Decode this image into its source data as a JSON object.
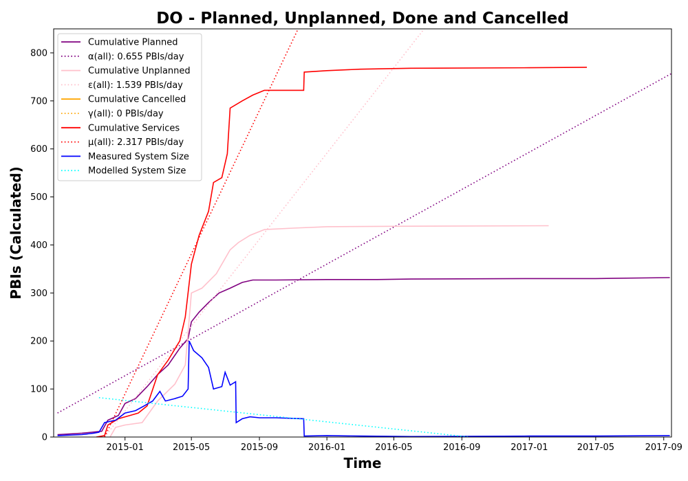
{
  "chart_data": {
    "type": "line",
    "title": "DO - Planned, Unplanned, Done  and Cancelled",
    "xlabel": "Time",
    "ylabel": "PBIs (Calculated)",
    "x_ticks": [
      "2015-01",
      "2015-05",
      "2015-09",
      "2016-01",
      "2016-05",
      "2016-09",
      "2017-01",
      "2017-05",
      "2017-09"
    ],
    "y_ticks": [
      "0",
      "100",
      "200",
      "300",
      "400",
      "500",
      "600",
      "700",
      "800"
    ],
    "xlim": [
      "2014-08-25",
      "2017-09-15"
    ],
    "ylim": [
      0,
      850
    ],
    "grid": false,
    "legend_position": "upper-left",
    "series": [
      {
        "name": "Cumulative Planned",
        "color": "#800080",
        "style": "solid",
        "points": [
          [
            "2014-09-01",
            5
          ],
          [
            "2014-10-15",
            8
          ],
          [
            "2014-11-20",
            12
          ],
          [
            "2014-12-01",
            35
          ],
          [
            "2014-12-20",
            45
          ],
          [
            "2015-01-01",
            70
          ],
          [
            "2015-01-20",
            80
          ],
          [
            "2015-02-10",
            105
          ],
          [
            "2015-03-01",
            130
          ],
          [
            "2015-03-20",
            150
          ],
          [
            "2015-04-10",
            185
          ],
          [
            "2015-04-25",
            205
          ],
          [
            "2015-05-01",
            240
          ],
          [
            "2015-05-15",
            260
          ],
          [
            "2015-06-01",
            280
          ],
          [
            "2015-06-20",
            300
          ],
          [
            "2015-07-10",
            310
          ],
          [
            "2015-08-01",
            322
          ],
          [
            "2015-08-20",
            327
          ],
          [
            "2015-10-01",
            327
          ],
          [
            "2016-01-01",
            328
          ],
          [
            "2016-04-01",
            328
          ],
          [
            "2016-06-01",
            329
          ],
          [
            "2017-01-01",
            330
          ],
          [
            "2017-05-01",
            330
          ],
          [
            "2017-09-12",
            332
          ]
        ]
      },
      {
        "name": "α(all): 0.655 PBIs/day",
        "color": "#800080",
        "style": "dotted",
        "points": [
          [
            "2014-09-01",
            50
          ],
          [
            "2017-09-15",
            757
          ]
        ]
      },
      {
        "name": "Cumulative Unplanned",
        "color": "#ffc0cb",
        "style": "solid",
        "points": [
          [
            "2014-12-05",
            0
          ],
          [
            "2014-12-15",
            20
          ],
          [
            "2015-01-01",
            25
          ],
          [
            "2015-02-01",
            30
          ],
          [
            "2015-03-01",
            75
          ],
          [
            "2015-04-01",
            110
          ],
          [
            "2015-04-20",
            150
          ],
          [
            "2015-05-01",
            300
          ],
          [
            "2015-05-20",
            310
          ],
          [
            "2015-06-15",
            340
          ],
          [
            "2015-07-10",
            390
          ],
          [
            "2015-07-25",
            405
          ],
          [
            "2015-08-15",
            420
          ],
          [
            "2015-09-10",
            432
          ],
          [
            "2015-11-01",
            435
          ],
          [
            "2016-01-01",
            438
          ],
          [
            "2016-06-01",
            439
          ],
          [
            "2017-02-05",
            440
          ]
        ]
      },
      {
        "name": "ε(all): 1.539 PBIs/day",
        "color": "#ffc0cb",
        "style": "dotted",
        "points": [
          [
            "2014-11-25",
            0
          ],
          [
            "2016-06-25",
            850
          ]
        ]
      },
      {
        "name": "Cumulative Cancelled",
        "color": "#ffa500",
        "style": "solid",
        "points": []
      },
      {
        "name": "γ(all): 0 PBIs/day",
        "color": "#ffa500",
        "style": "dotted",
        "points": []
      },
      {
        "name": "Cumulative Services",
        "color": "#ff0000",
        "style": "solid",
        "points": [
          [
            "2014-11-10",
            0
          ],
          [
            "2014-11-25",
            3
          ],
          [
            "2014-12-01",
            25
          ],
          [
            "2014-12-20",
            38
          ],
          [
            "2015-01-10",
            45
          ],
          [
            "2015-01-25",
            50
          ],
          [
            "2015-02-10",
            65
          ],
          [
            "2015-03-01",
            130
          ],
          [
            "2015-03-20",
            160
          ],
          [
            "2015-04-10",
            200
          ],
          [
            "2015-04-20",
            250
          ],
          [
            "2015-05-01",
            360
          ],
          [
            "2015-05-15",
            420
          ],
          [
            "2015-06-01",
            470
          ],
          [
            "2015-06-10",
            530
          ],
          [
            "2015-06-25",
            540
          ],
          [
            "2015-07-05",
            590
          ],
          [
            "2015-07-10",
            685
          ],
          [
            "2015-08-01",
            700
          ],
          [
            "2015-08-20",
            712
          ],
          [
            "2015-09-10",
            722
          ],
          [
            "2015-11-20",
            722
          ],
          [
            "2015-11-21",
            760
          ],
          [
            "2016-01-01",
            763
          ],
          [
            "2016-03-01",
            766
          ],
          [
            "2016-06-01",
            768
          ],
          [
            "2017-01-01",
            769
          ],
          [
            "2017-04-15",
            770
          ]
        ]
      },
      {
        "name": "μ(all): 2.317 PBIs/day",
        "color": "#ff0000",
        "style": "dotted",
        "points": [
          [
            "2014-11-25",
            0
          ],
          [
            "2015-11-10",
            850
          ]
        ]
      },
      {
        "name": "Measured System Size",
        "color": "#0000ff",
        "style": "solid",
        "points": [
          [
            "2014-09-01",
            3
          ],
          [
            "2014-10-15",
            5
          ],
          [
            "2014-11-05",
            8
          ],
          [
            "2014-11-15",
            10
          ],
          [
            "2014-11-25",
            30
          ],
          [
            "2014-12-15",
            35
          ],
          [
            "2015-01-01",
            50
          ],
          [
            "2015-01-20",
            55
          ],
          [
            "2015-02-05",
            65
          ],
          [
            "2015-02-20",
            75
          ],
          [
            "2015-03-05",
            95
          ],
          [
            "2015-03-15",
            75
          ],
          [
            "2015-04-01",
            80
          ],
          [
            "2015-04-15",
            85
          ],
          [
            "2015-04-25",
            100
          ],
          [
            "2015-04-27",
            200
          ],
          [
            "2015-05-05",
            180
          ],
          [
            "2015-05-20",
            165
          ],
          [
            "2015-06-01",
            145
          ],
          [
            "2015-06-10",
            100
          ],
          [
            "2015-06-25",
            105
          ],
          [
            "2015-07-01",
            135
          ],
          [
            "2015-07-10",
            108
          ],
          [
            "2015-07-20",
            115
          ],
          [
            "2015-07-21",
            30
          ],
          [
            "2015-08-01",
            38
          ],
          [
            "2015-08-15",
            42
          ],
          [
            "2015-09-01",
            40
          ],
          [
            "2015-10-01",
            40
          ],
          [
            "2015-11-20",
            38
          ],
          [
            "2015-11-21",
            2
          ],
          [
            "2016-01-01",
            3
          ],
          [
            "2016-03-01",
            2
          ],
          [
            "2016-06-01",
            1
          ],
          [
            "2017-01-01",
            2
          ],
          [
            "2017-05-01",
            2
          ],
          [
            "2017-09-12",
            3
          ]
        ]
      },
      {
        "name": "Modelled System Size",
        "color": "#00ffff",
        "style": "dotted",
        "points": [
          [
            "2014-11-15",
            82
          ],
          [
            "2016-09-15",
            0
          ]
        ]
      }
    ]
  }
}
